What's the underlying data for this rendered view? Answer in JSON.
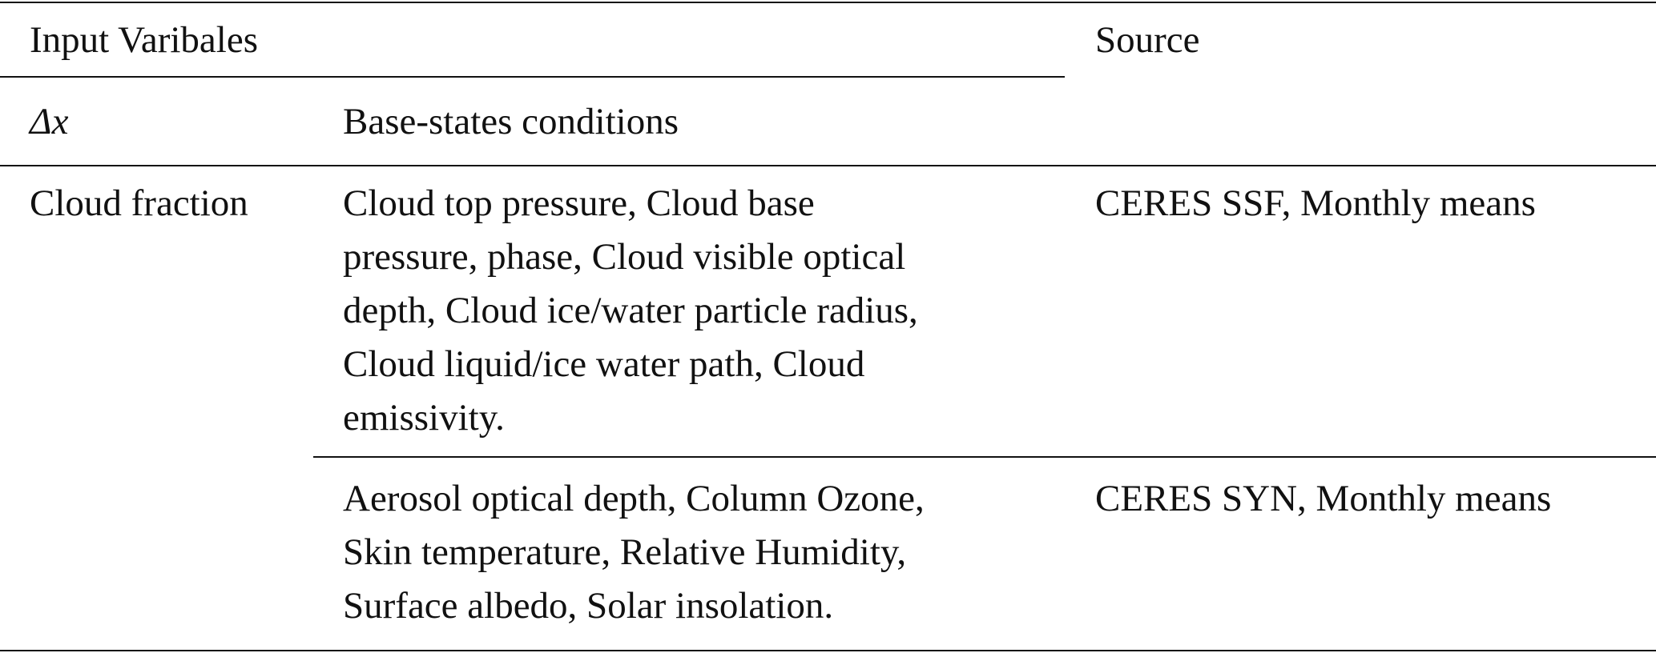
{
  "header": {
    "variables": "Input Varibales",
    "source": "Source"
  },
  "subheader": {
    "delta": "Δx",
    "base": "Base-states conditions"
  },
  "rows": [
    {
      "variable": "Cloud fraction",
      "conditions": [
        "Cloud top pressure, Cloud base",
        "pressure, phase, Cloud visible optical",
        "depth, Cloud ice/water particle radius,",
        "Cloud liquid/ice water path, Cloud",
        "emissivity."
      ],
      "source": "CERES SSF, Monthly means"
    },
    {
      "conditions": [
        "Aerosol optical depth, Column Ozone,",
        "Skin temperature, Relative Humidity,",
        "Surface albedo, Solar insolation."
      ],
      "source": "CERES SYN, Monthly means"
    }
  ]
}
